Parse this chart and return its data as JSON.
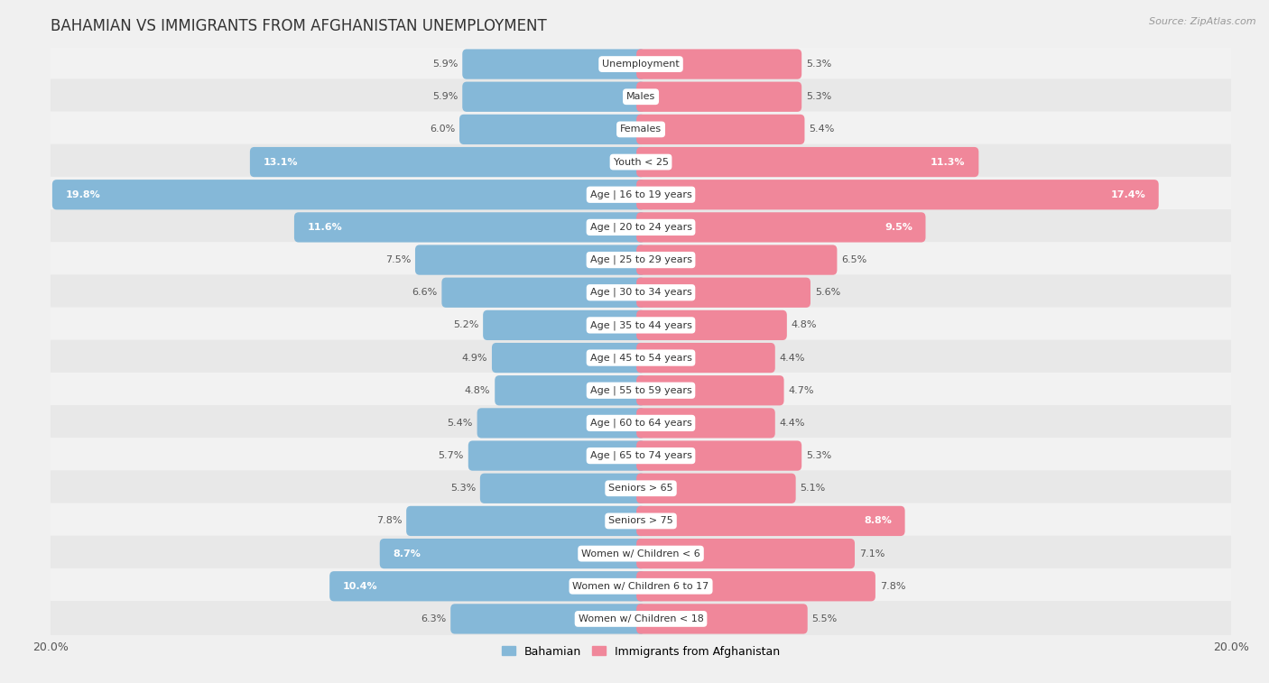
{
  "title": "BAHAMIAN VS IMMIGRANTS FROM AFGHANISTAN UNEMPLOYMENT",
  "source": "Source: ZipAtlas.com",
  "categories": [
    "Unemployment",
    "Males",
    "Females",
    "Youth < 25",
    "Age | 16 to 19 years",
    "Age | 20 to 24 years",
    "Age | 25 to 29 years",
    "Age | 30 to 34 years",
    "Age | 35 to 44 years",
    "Age | 45 to 54 years",
    "Age | 55 to 59 years",
    "Age | 60 to 64 years",
    "Age | 65 to 74 years",
    "Seniors > 65",
    "Seniors > 75",
    "Women w/ Children < 6",
    "Women w/ Children 6 to 17",
    "Women w/ Children < 18"
  ],
  "bahamian": [
    5.9,
    5.9,
    6.0,
    13.1,
    19.8,
    11.6,
    7.5,
    6.6,
    5.2,
    4.9,
    4.8,
    5.4,
    5.7,
    5.3,
    7.8,
    8.7,
    10.4,
    6.3
  ],
  "afghanistan": [
    5.3,
    5.3,
    5.4,
    11.3,
    17.4,
    9.5,
    6.5,
    5.6,
    4.8,
    4.4,
    4.7,
    4.4,
    5.3,
    5.1,
    8.8,
    7.1,
    7.8,
    5.5
  ],
  "bahamian_color": "#85b8d8",
  "afghanistan_color": "#f0879a",
  "bar_height": 0.62,
  "xlim": 20.0,
  "row_colors": [
    "#f2f2f2",
    "#e8e8e8"
  ],
  "legend_label_1": "Bahamian",
  "legend_label_2": "Immigrants from Afghanistan"
}
